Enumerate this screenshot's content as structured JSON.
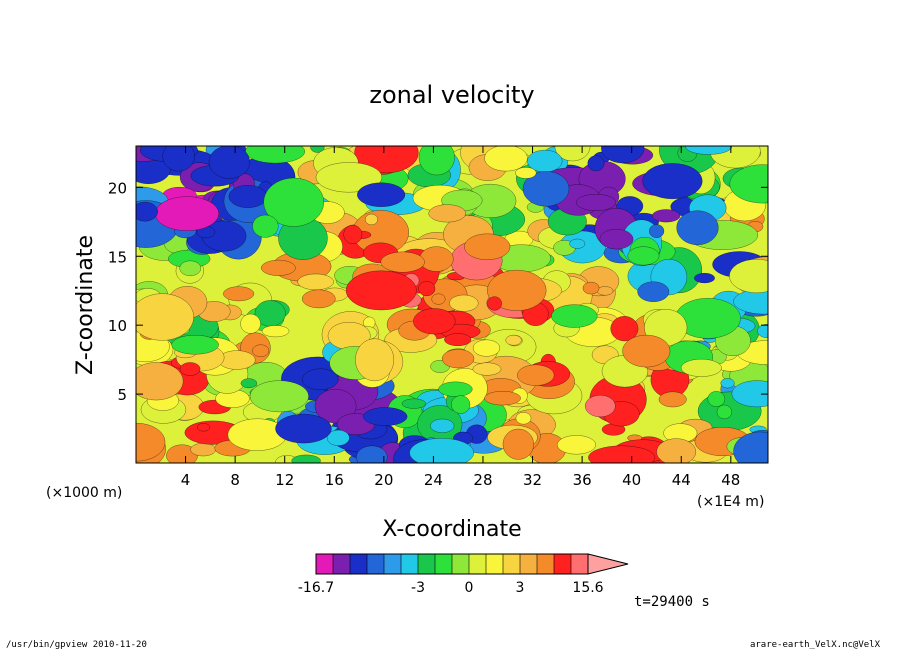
{
  "chart_data": {
    "type": "heatmap",
    "title": "zonal velocity",
    "xlabel": "X-coordinate",
    "ylabel": "Z-coordinate",
    "x_unit": "(×1E4 m)",
    "y_unit": "(×1000 m)",
    "x_ticks": [
      4,
      8,
      12,
      16,
      20,
      24,
      28,
      32,
      36,
      40,
      44,
      48
    ],
    "y_ticks": [
      5,
      10,
      15,
      20
    ],
    "xlim": [
      0,
      51
    ],
    "ylim": [
      0,
      23
    ],
    "colorbar": {
      "levels": [
        -16.7,
        -13,
        -9,
        -6,
        -5,
        -4,
        -3,
        -2,
        -1,
        0,
        1,
        2,
        3,
        4,
        6,
        9,
        12,
        15.6
      ],
      "tick_labels": [
        "-16.7",
        "-3",
        "0",
        "3",
        "15.6"
      ],
      "colors": [
        "#e31ab8",
        "#7b1fb0",
        "#1a2fc8",
        "#2266d8",
        "#2d9bea",
        "#22c8e8",
        "#19c84a",
        "#2ee03a",
        "#8ee83a",
        "#ddf03a",
        "#f8f53a",
        "#f8d540",
        "#f5b040",
        "#f58a2a",
        "#ff2020",
        "#ff6f6f",
        "#ffa0a0"
      ]
    },
    "grid": false
  },
  "annotations": {
    "time": "t=29400 s"
  },
  "footer": {
    "left": "/usr/bin/gpview  2010-11-20",
    "right": "arare-earth_VelX.nc@VelX"
  }
}
